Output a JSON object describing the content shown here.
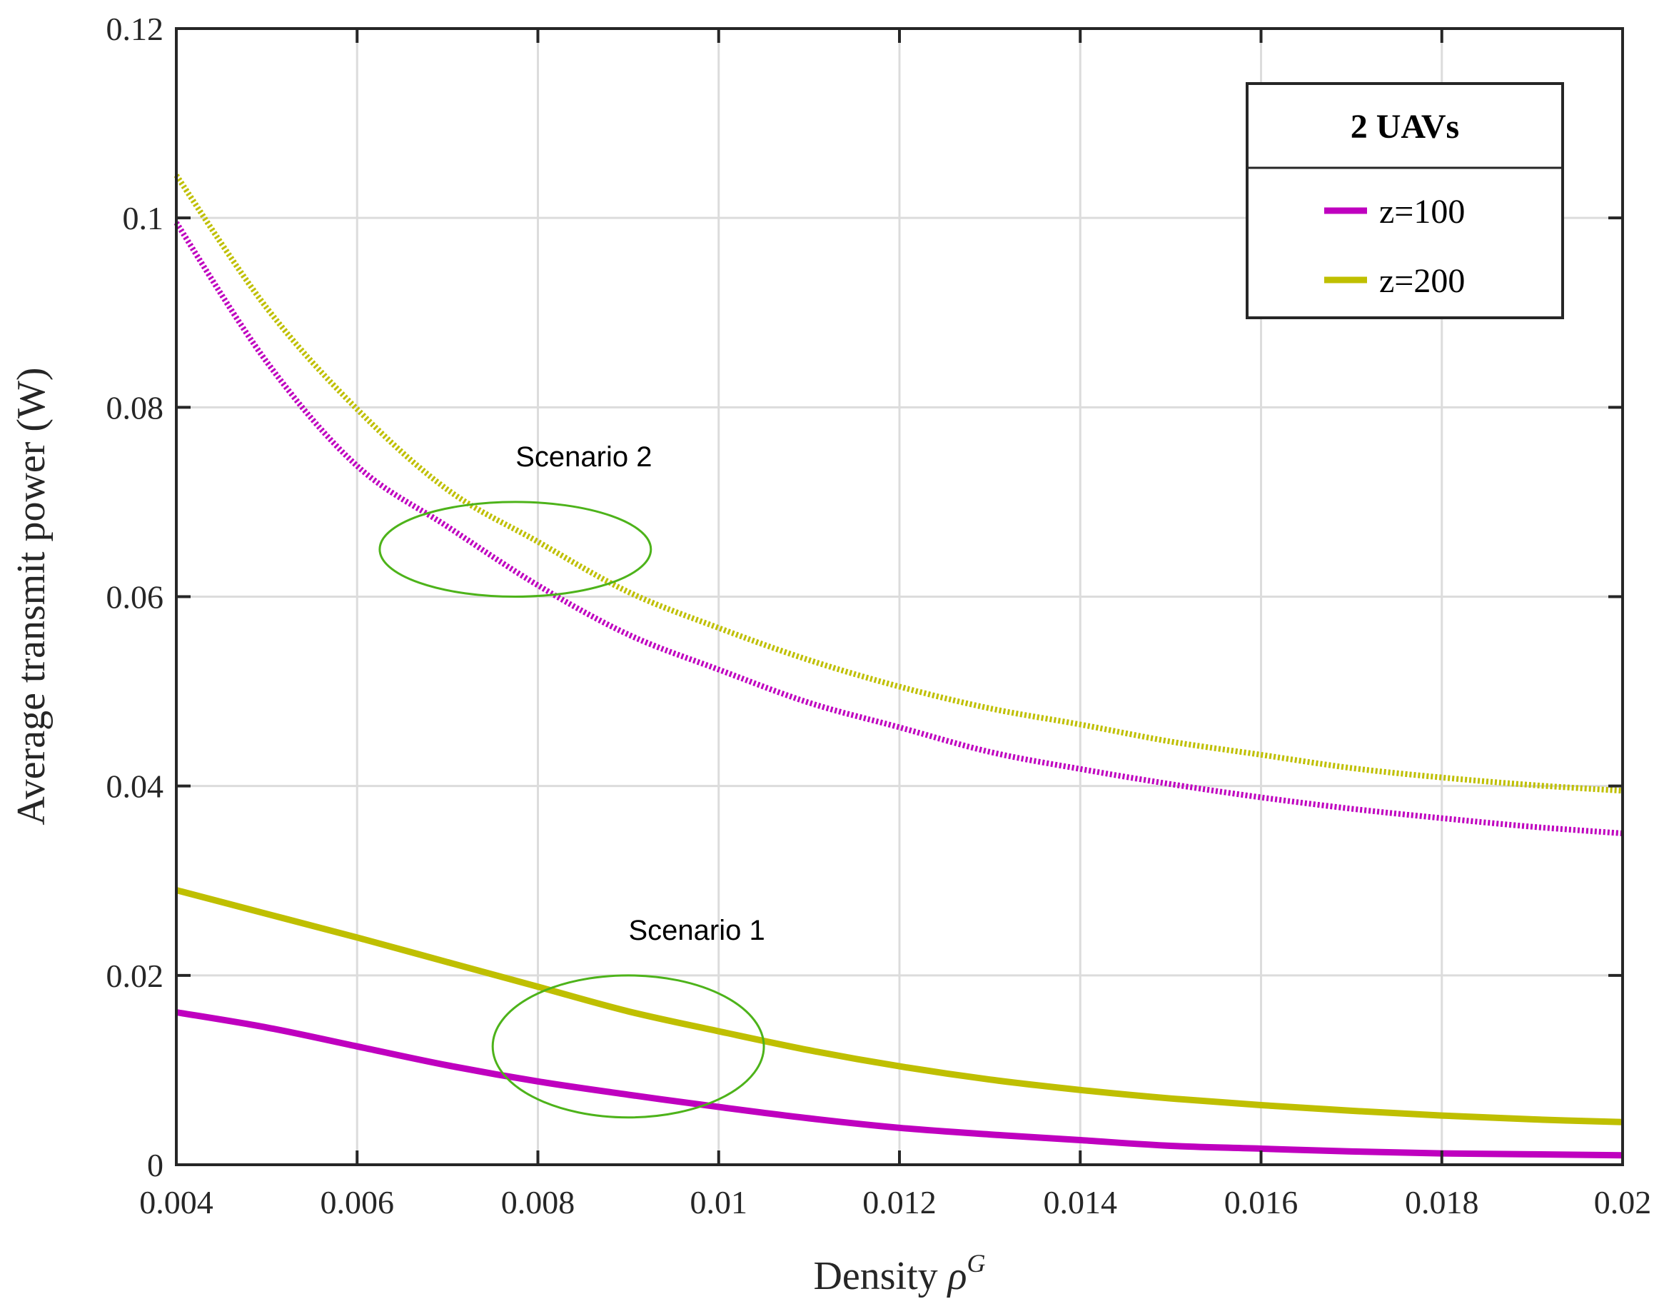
{
  "chart_data": {
    "type": "line",
    "xlabel": "Density",
    "xlabel_symbol": "ρ",
    "xlabel_superscript": "G",
    "ylabel": "Average transmit power (W)",
    "xlim": [
      0.004,
      0.02
    ],
    "ylim": [
      0,
      0.12
    ],
    "xticks": [
      "0.004",
      "0.006",
      "0.008",
      "0.01",
      "0.012",
      "0.014",
      "0.016",
      "0.018",
      "0.02"
    ],
    "xtick_values": [
      0.004,
      0.006,
      0.008,
      0.01,
      0.012,
      0.014,
      0.016,
      0.018,
      0.02
    ],
    "yticks": [
      "0",
      "0.02",
      "0.04",
      "0.06",
      "0.08",
      "0.1",
      "0.12"
    ],
    "ytick_values": [
      0,
      0.02,
      0.04,
      0.06,
      0.08,
      0.1,
      0.12
    ],
    "grid": true,
    "legend": {
      "title": "2 UAVs",
      "position": "top-right",
      "entries": [
        {
          "label": "z=100",
          "color": "#BF00BF"
        },
        {
          "label": "z=200",
          "color": "#BFBF00"
        }
      ]
    },
    "x": [
      0.004,
      0.005,
      0.006,
      0.007,
      0.008,
      0.009,
      0.01,
      0.011,
      0.012,
      0.013,
      0.014,
      0.015,
      0.016,
      0.017,
      0.018,
      0.019,
      0.02
    ],
    "series": [
      {
        "name": "Scenario 2, z=100",
        "legend": "z=100",
        "style": "dotted",
        "color": "#BF00BF",
        "values": [
          0.0995,
          0.0848,
          0.0738,
          0.0674,
          0.0612,
          0.056,
          0.0523,
          0.0488,
          0.0462,
          0.0436,
          0.0418,
          0.0402,
          0.0388,
          0.0376,
          0.0366,
          0.0357,
          0.035
        ]
      },
      {
        "name": "Scenario 2, z=200",
        "legend": "z=200",
        "style": "dotted",
        "color": "#BFBF00",
        "values": [
          0.1045,
          0.0905,
          0.0798,
          0.0713,
          0.0658,
          0.0605,
          0.0567,
          0.0533,
          0.0505,
          0.0482,
          0.0465,
          0.0447,
          0.0433,
          0.0419,
          0.0409,
          0.0401,
          0.0395
        ]
      },
      {
        "name": "Scenario 1, z=100",
        "legend": "z=100",
        "style": "solid",
        "color": "#BF00BF",
        "values": [
          0.0161,
          0.0145,
          0.0125,
          0.0105,
          0.0088,
          0.0074,
          0.0061,
          0.0049,
          0.0039,
          0.0032,
          0.0026,
          0.002,
          0.0017,
          0.0014,
          0.0012,
          0.0011,
          0.001
        ]
      },
      {
        "name": "Scenario 1, z=200",
        "legend": "z=200",
        "style": "solid",
        "color": "#BFBF00",
        "values": [
          0.029,
          0.0265,
          0.024,
          0.0214,
          0.0188,
          0.0162,
          0.0141,
          0.0121,
          0.0104,
          0.009,
          0.0079,
          0.007,
          0.0063,
          0.0057,
          0.0052,
          0.0048,
          0.0045
        ]
      }
    ],
    "annotations": [
      {
        "text": "Scenario 2",
        "ellipse_center": [
          0.00775,
          0.065
        ],
        "ellipse_radii": [
          0.0015,
          0.005
        ],
        "color": "#4DB31A"
      },
      {
        "text": "Scenario 1",
        "ellipse_center": [
          0.009,
          0.0125
        ],
        "ellipse_radii": [
          0.0015,
          0.0075
        ],
        "color": "#4DB31A"
      }
    ]
  }
}
